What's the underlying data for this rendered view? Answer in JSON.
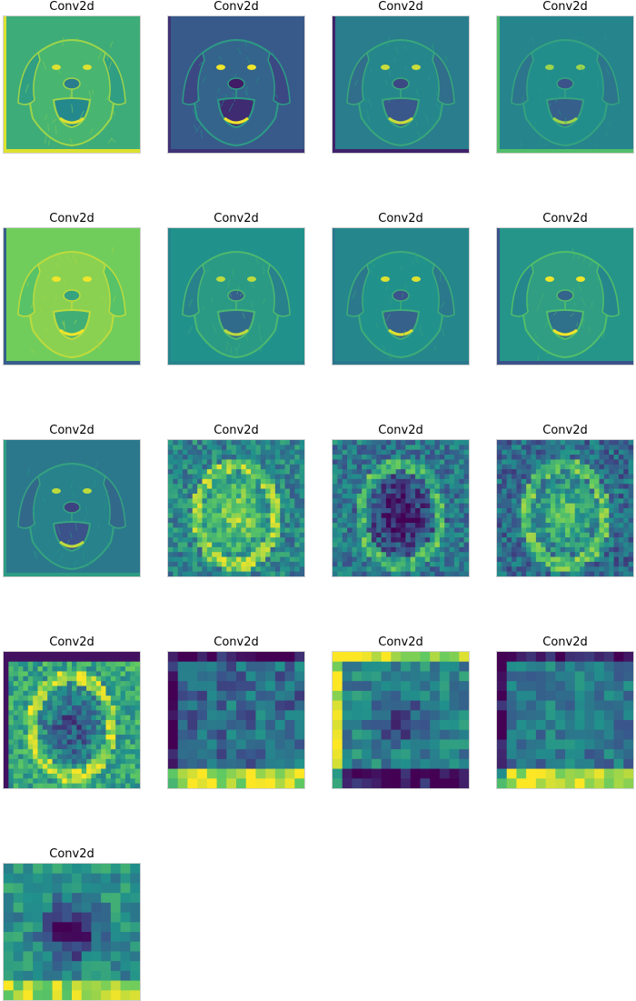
{
  "figure": {
    "panels": [
      {
        "title": "Conv2d",
        "grid": 1,
        "colormap": "viridis",
        "content": "dog-face"
      },
      {
        "title": "Conv2d",
        "grid": 1,
        "colormap": "viridis",
        "content": "dog-face"
      },
      {
        "title": "Conv2d",
        "grid": 1,
        "colormap": "viridis",
        "content": "dog-face"
      },
      {
        "title": "Conv2d",
        "grid": 1,
        "colormap": "viridis",
        "content": "dog-face"
      },
      {
        "title": "Conv2d",
        "grid": 1,
        "colormap": "viridis",
        "content": "dog-face"
      },
      {
        "title": "Conv2d",
        "grid": 1,
        "colormap": "viridis",
        "content": "dog-face"
      },
      {
        "title": "Conv2d",
        "grid": 1,
        "colormap": "viridis",
        "content": "dog-face"
      },
      {
        "title": "Conv2d",
        "grid": 1,
        "colormap": "viridis",
        "content": "dog-face"
      },
      {
        "title": "Conv2d",
        "grid": 1,
        "colormap": "viridis",
        "content": "dog-face"
      },
      {
        "title": "Conv2d",
        "grid": 28,
        "colormap": "viridis",
        "content": "blocky-dog"
      },
      {
        "title": "Conv2d",
        "grid": 28,
        "colormap": "viridis",
        "content": "blocky-dog"
      },
      {
        "title": "Conv2d",
        "grid": 28,
        "colormap": "viridis",
        "content": "blocky-dog"
      },
      {
        "title": "Conv2d",
        "grid": 28,
        "colormap": "viridis",
        "content": "blocky-dog"
      },
      {
        "title": "Conv2d",
        "grid": 14,
        "colormap": "viridis",
        "content": "coarse-grid"
      },
      {
        "title": "Conv2d",
        "grid": 14,
        "colormap": "viridis",
        "content": "coarse-grid"
      },
      {
        "title": "Conv2d",
        "grid": 14,
        "colormap": "viridis",
        "content": "coarse-grid"
      },
      {
        "title": "Conv2d",
        "grid": 14,
        "colormap": "viridis",
        "content": "coarse-grid"
      }
    ],
    "colors": {
      "dark_purple": "#440154",
      "indigo": "#3b528b",
      "teal": "#21918c",
      "green": "#5ec962",
      "yellow": "#fde725"
    }
  }
}
